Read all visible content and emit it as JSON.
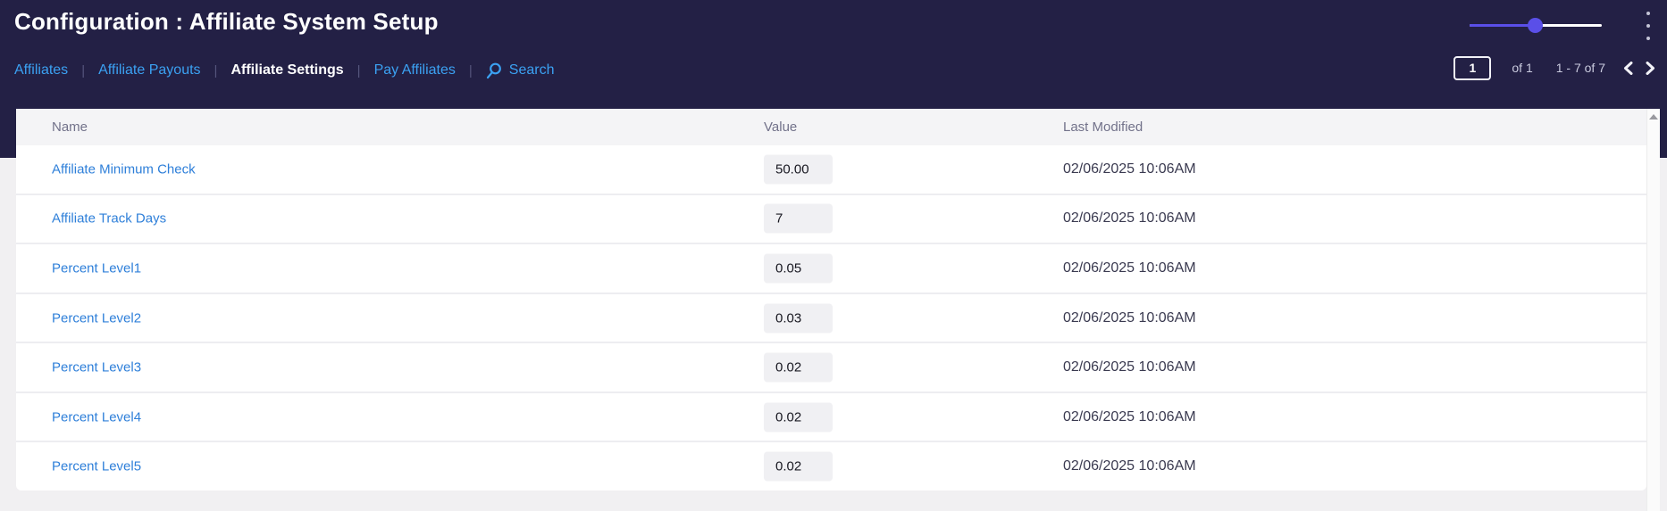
{
  "header": {
    "title": "Configuration : Affiliate System Setup",
    "slider_percent": 50
  },
  "nav": {
    "separator": "|",
    "links": [
      {
        "label": "Affiliates",
        "active": false
      },
      {
        "label": "Affiliate Payouts",
        "active": false
      },
      {
        "label": "Affiliate Settings",
        "active": true
      },
      {
        "label": "Pay Affiliates",
        "active": false
      }
    ],
    "search_label": "Search"
  },
  "pagination": {
    "page": "1",
    "of_label": "of 1",
    "range_label": "1 - 7 of 7"
  },
  "table": {
    "columns": {
      "name": "Name",
      "value": "Value",
      "last_modified": "Last Modified"
    },
    "rows": [
      {
        "name": "Affiliate Minimum Check",
        "value": "50.00",
        "last_modified": "02/06/2025 10:06AM"
      },
      {
        "name": "Affiliate Track Days",
        "value": "7",
        "last_modified": "02/06/2025 10:06AM"
      },
      {
        "name": "Percent Level1",
        "value": "0.05",
        "last_modified": "02/06/2025 10:06AM"
      },
      {
        "name": "Percent Level2",
        "value": "0.03",
        "last_modified": "02/06/2025 10:06AM"
      },
      {
        "name": "Percent Level3",
        "value": "0.02",
        "last_modified": "02/06/2025 10:06AM"
      },
      {
        "name": "Percent Level4",
        "value": "0.02",
        "last_modified": "02/06/2025 10:06AM"
      },
      {
        "name": "Percent Level5",
        "value": "0.02",
        "last_modified": "02/06/2025 10:06AM"
      }
    ]
  },
  "colors": {
    "header_navy": "#232045",
    "nav_link_blue": "#3ba1f2",
    "table_link_blue": "#2e7fd9",
    "slider_purple": "#5a4fe8",
    "page_background": "#f1f0f2"
  }
}
